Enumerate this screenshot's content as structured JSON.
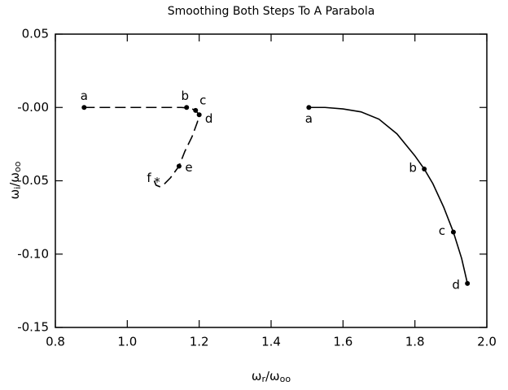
{
  "chart_data": {
    "type": "line",
    "title": "Smoothing Both Steps To A Parabola",
    "x_label": [
      "ω",
      "r",
      "/ω",
      "oo"
    ],
    "y_label": [
      "ω",
      "i",
      "/ω",
      "oo"
    ],
    "xlim": [
      0.8,
      2.0
    ],
    "ylim": [
      -0.15,
      0.05
    ],
    "xticks": [
      0.8,
      {
        "value": 1,
        "label": "1.0"
      },
      1.2,
      1.4,
      1.6,
      1.8,
      {
        "value": 2,
        "label": "2.0"
      }
    ],
    "yticks": [
      -0.15,
      {
        "value": -0.1,
        "label": "-0.10"
      },
      -0.05,
      {
        "value": 0,
        "label": "-0.00"
      },
      0.05
    ],
    "series": [
      {
        "style": "dashed",
        "color": "#000000",
        "x": [
          0.88,
          1.0,
          1.1,
          1.15,
          1.175,
          1.19,
          1.2,
          1.195,
          1.18,
          1.16,
          1.144,
          1.12,
          1.1,
          1.09,
          1.08,
          1.075
        ],
        "values": [
          0,
          0,
          0,
          0,
          -0.0005,
          -0.002,
          -0.005,
          -0.01,
          -0.02,
          -0.03,
          -0.04,
          -0.048,
          -0.053,
          -0.054,
          -0.053,
          -0.05
        ],
        "points": [
          {
            "label": "a",
            "x": 0.88,
            "y": 0
          },
          {
            "label": "b",
            "x": 1.165,
            "y": 0
          },
          {
            "label": "c",
            "x": 1.19,
            "y": -0.002
          },
          {
            "label": "d",
            "x": 1.2,
            "y": -0.005
          },
          {
            "label": "e",
            "x": 1.144,
            "y": -0.04
          },
          {
            "label": "f",
            "x": 1.083,
            "y": -0.049,
            "marker": "star"
          }
        ]
      },
      {
        "style": "solid",
        "color": "#000000",
        "x": [
          1.505,
          1.55,
          1.6,
          1.65,
          1.7,
          1.75,
          1.8,
          1.826,
          1.85,
          1.88,
          1.907,
          1.93,
          1.946
        ],
        "values": [
          0,
          0,
          -0.001,
          -0.003,
          -0.008,
          -0.018,
          -0.033,
          -0.042,
          -0.052,
          -0.068,
          -0.085,
          -0.103,
          -0.12
        ],
        "points": [
          {
            "label": "a",
            "x": 1.505,
            "y": 0
          },
          {
            "label": "b",
            "x": 1.826,
            "y": -0.042
          },
          {
            "label": "c",
            "x": 1.907,
            "y": -0.085
          },
          {
            "label": "d",
            "x": 1.946,
            "y": -0.12
          }
        ]
      }
    ]
  }
}
